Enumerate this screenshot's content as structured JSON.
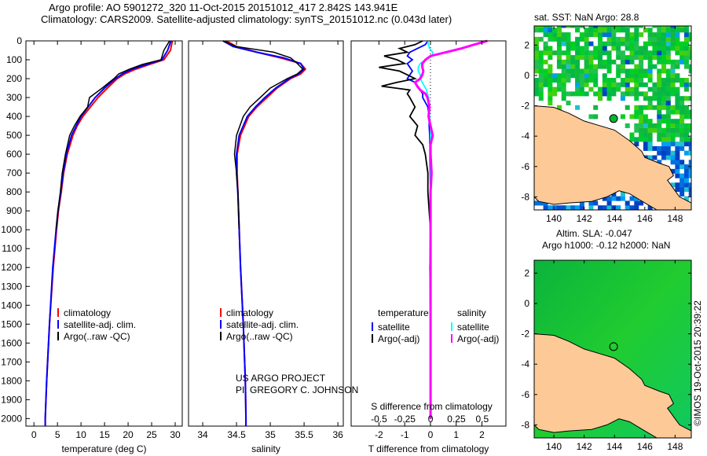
{
  "title": {
    "line1": "Argo profile: AO 5901272_320 11-Oct-2015 20151012_417 2.842S 143.941E",
    "line2": "Climatology: CARS2009. Satellite-adjusted climatology: synTS_20151012.nc (0.043d later)"
  },
  "credit": "©IMOS 19-Oct-2015 20:39:22",
  "project": {
    "line1": "US ARGO PROJECT",
    "line2": "PI: GREGORY C. JOHNSON"
  },
  "colors": {
    "climatology": "#ff0000",
    "satellite": "#0000ff",
    "argo": "#000000",
    "sal_satellite": "#00ffff",
    "sal_argo": "#ff00ff",
    "land": "#fcc997"
  },
  "chart_data": [
    {
      "type": "line",
      "id": "temperature",
      "xlabel": "temperature (deg C)",
      "ylabel": "depth",
      "xlim": [
        -1.7,
        31.5
      ],
      "ylim": [
        2040,
        0
      ],
      "xticks": [
        "0",
        "5",
        "10",
        "15",
        "20",
        "25",
        "30"
      ],
      "yticks": [
        "0",
        "100",
        "200",
        "300",
        "400",
        "500",
        "600",
        "700",
        "800",
        "900",
        "1000",
        "1100",
        "1200",
        "1300",
        "1400",
        "1500",
        "1600",
        "1700",
        "1800",
        "1900",
        "2000"
      ],
      "depth": [
        0,
        50,
        100,
        125,
        150,
        175,
        200,
        250,
        300,
        350,
        400,
        450,
        500,
        600,
        700,
        800,
        900,
        1000,
        1200,
        1500,
        1800,
        2000,
        2040
      ],
      "series": [
        {
          "name": "climatology",
          "values": [
            29.4,
            29.0,
            27.6,
            24.5,
            21.6,
            19.3,
            17.7,
            15.6,
            13.6,
            12.0,
            10.4,
            9.2,
            8.3,
            7.1,
            6.3,
            5.8,
            5.2,
            4.8,
            4.1,
            3.3,
            2.7,
            2.4,
            2.4
          ]
        },
        {
          "name": "satellite-adj. clim.",
          "values": [
            29.1,
            28.4,
            27.2,
            24.0,
            20.9,
            18.8,
            17.3,
            15.0,
            13.0,
            11.5,
            10.0,
            9.0,
            8.0,
            6.9,
            6.2,
            5.7,
            5.1,
            4.7,
            4.0,
            3.3,
            2.7,
            2.4,
            2.4
          ]
        },
        {
          "name": "Argo(..raw -QC)",
          "values": [
            28.8,
            27.6,
            27.0,
            23.0,
            20.3,
            18.0,
            17.0,
            14.5,
            11.8,
            11.4,
            9.8,
            8.6,
            7.6,
            6.7,
            6.0,
            5.6,
            5.1,
            4.7
          ]
        }
      ],
      "legend": [
        "climatology",
        "satellite-adj. clim.",
        "Argo(..raw -QC)"
      ]
    },
    {
      "type": "line",
      "id": "salinity",
      "xlabel": "salinity",
      "xlim": [
        33.79,
        36.08
      ],
      "ylim": [
        2040,
        0
      ],
      "xticks": [
        "34",
        "34.5",
        "35",
        "35.5",
        "36"
      ],
      "depth": [
        0,
        30,
        60,
        90,
        120,
        150,
        175,
        200,
        250,
        300,
        350,
        400,
        500,
        600,
        700,
        800,
        1000,
        1200,
        1500,
        1800,
        2000,
        2040
      ],
      "series": [
        {
          "name": "climatology",
          "values": [
            34.35,
            34.5,
            34.8,
            35.15,
            35.45,
            35.52,
            35.45,
            35.3,
            35.1,
            34.95,
            34.8,
            34.68,
            34.56,
            34.51,
            34.51,
            34.52,
            34.54,
            34.56,
            34.6,
            34.63,
            34.64,
            34.64
          ]
        },
        {
          "name": "satellite-adj. clim.",
          "values": [
            34.3,
            34.45,
            34.8,
            35.2,
            35.45,
            35.5,
            35.42,
            35.28,
            35.08,
            34.92,
            34.78,
            34.66,
            34.54,
            34.5,
            34.5,
            34.52,
            34.54,
            34.56,
            34.6,
            34.63,
            34.64,
            34.64
          ]
        },
        {
          "name": "Argo(..raw -QC)",
          "values": [
            34.3,
            34.5,
            35.05,
            35.3,
            35.4,
            35.48,
            35.4,
            35.25,
            35.0,
            34.85,
            34.7,
            34.6,
            34.5,
            34.47,
            34.5,
            34.52,
            34.54
          ]
        }
      ],
      "legend": [
        "climatology",
        "satellite-adj. clim.",
        "Argo(..raw -QC)"
      ]
    },
    {
      "type": "line",
      "id": "difference",
      "xlabel": "T difference from climatology",
      "x2label": "S difference from climatology",
      "xlim": [
        -3.08,
        2.93
      ],
      "x2lim": [
        -0.77,
        0.73
      ],
      "ylim": [
        2040,
        0
      ],
      "xticks": [
        "-2",
        "-1",
        "0",
        "1",
        "2"
      ],
      "x2ticks": [
        "-0.5",
        "-0.25",
        "0",
        "0.25",
        "0.5"
      ],
      "legend_headers": [
        "temperature",
        "salinity"
      ],
      "depth": [
        0,
        20,
        40,
        60,
        80,
        100,
        120,
        140,
        160,
        180,
        200,
        220,
        240,
        260,
        280,
        300,
        350,
        400,
        450,
        500,
        550,
        600,
        700,
        800,
        900,
        1000,
        1200,
        1500,
        2000
      ],
      "series": [
        {
          "name": "temperature satellite",
          "values": [
            -0.1,
            -0.2,
            -0.5,
            -0.8,
            -0.9,
            -0.7,
            -0.9,
            -0.8,
            -0.7,
            -0.8,
            -0.9,
            -0.6,
            -0.5,
            -0.4,
            -0.3,
            -0.3,
            -0.1,
            -0.05,
            -0.05,
            -0.03,
            -0.02,
            -0.02,
            -0.01,
            0,
            0,
            0,
            0,
            0,
            0
          ]
        },
        {
          "name": "temperature Argo(-adj)",
          "values": [
            -0.3,
            -0.6,
            -1.2,
            -0.9,
            -1.8,
            -1.3,
            -1.0,
            -2.0,
            -1.2,
            -0.9,
            -0.6,
            -1.3,
            -1.9,
            -0.8,
            -0.9,
            -0.8,
            -0.6,
            -0.8,
            -0.5,
            -0.6,
            -0.3,
            -0.2,
            -0.1,
            -0.1,
            -0.05,
            0,
            -0.02,
            0,
            0
          ]
        },
        {
          "name": "salinity satellite",
          "values": [
            -0.03,
            -0.02,
            -0.01,
            0.02,
            0.02,
            -0.05,
            -0.1,
            -0.12,
            -0.12,
            -0.1,
            -0.1,
            -0.08,
            -0.06,
            -0.04,
            -0.03,
            -0.02,
            -0.01,
            -0.01,
            0,
            0,
            0,
            0,
            0,
            0,
            0,
            0,
            0,
            0,
            0
          ]
        },
        {
          "name": "salinity Argo(-adj)",
          "values": [
            0.55,
            0.42,
            0.3,
            0.15,
            0.0,
            -0.05,
            -0.08,
            -0.08,
            -0.07,
            -0.08,
            -0.1,
            -0.15,
            -0.13,
            -0.1,
            -0.05,
            -0.03,
            -0.01,
            -0.02,
            0,
            0.02,
            0,
            0,
            0.01,
            0,
            0,
            0,
            0,
            0,
            0
          ]
        }
      ],
      "legend": [
        "satellite",
        "Argo(-adj)",
        "satellite",
        "Argo(-adj)"
      ]
    },
    {
      "type": "heatmap",
      "id": "sst_map",
      "title": "sat. SST: NaN Argo: 28.8",
      "xlim": [
        138.7,
        149.07
      ],
      "ylim": [
        -8.86,
        3.26
      ],
      "xticks": [
        "140",
        "142",
        "144",
        "146",
        "148"
      ],
      "yticks": [
        "2",
        "0",
        "-2",
        "-4",
        "-6",
        "-8"
      ],
      "argo_position": {
        "lon": 143.941,
        "lat": -2.842
      }
    },
    {
      "type": "heatmap",
      "id": "sla_map",
      "title": "Altim. SLA: -0.047",
      "subtitle": "Argo h1000: -0.12 h2000: NaN",
      "xlim": [
        138.7,
        149.07
      ],
      "ylim": [
        -8.86,
        2.85
      ],
      "xticks": [
        "140",
        "142",
        "144",
        "146",
        "148"
      ],
      "yticks": [
        "2",
        "0",
        "-2",
        "-4",
        "-6",
        "-8"
      ],
      "argo_position": {
        "lon": 143.941,
        "lat": -2.842
      }
    }
  ]
}
